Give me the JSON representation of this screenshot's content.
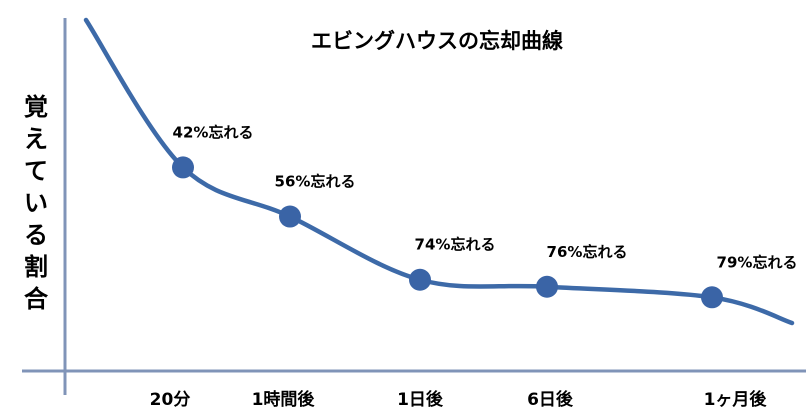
{
  "chart_data": {
    "type": "line",
    "title": "エビングハウスの忘却曲線",
    "xlabel": "",
    "ylabel": "覚えている割合",
    "categories": [
      "20分",
      "1時間後",
      "1日後",
      "6日後",
      "1ヶ月後"
    ],
    "forgotten_percent": [
      42,
      56,
      74,
      76,
      79
    ],
    "data_labels": [
      "42%忘れる",
      "56%忘れる",
      "74%忘れる",
      "76%忘れる",
      "79%忘れる"
    ],
    "ylim": [
      0,
      100
    ],
    "grid": false,
    "legend": "none"
  },
  "colors": {
    "curve": "#3d6aa8",
    "axis": "#8094b8",
    "marker": "#3a64a6",
    "text": "#000000"
  }
}
